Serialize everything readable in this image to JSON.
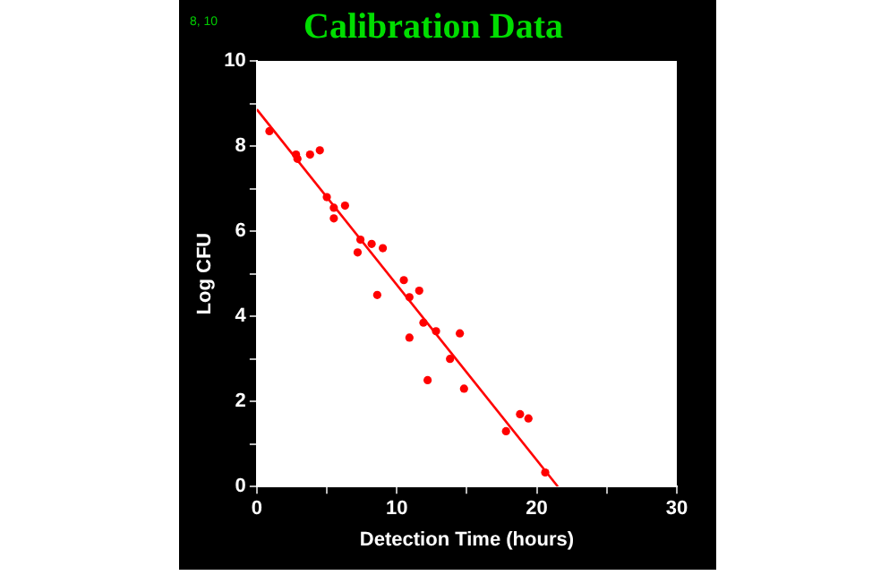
{
  "chart_data": {
    "type": "scatter",
    "title": "Calibration Data",
    "xlabel": "Detection Time (hours)",
    "ylabel": "Log CFU",
    "annotations": [
      "8, 10"
    ],
    "xlim": [
      0,
      30
    ],
    "ylim": [
      0,
      10
    ],
    "xticks": [
      0,
      {
        "value": 5,
        "label": null
      },
      10,
      {
        "value": 15,
        "label": null
      },
      20,
      {
        "value": 25,
        "label": null
      },
      30
    ],
    "yticks": [
      0,
      {
        "value": 1,
        "label": null
      },
      2,
      {
        "value": 3,
        "label": null
      },
      4,
      {
        "value": 5,
        "label": null
      },
      6,
      {
        "value": 7,
        "label": null
      },
      8,
      {
        "value": 9,
        "label": null
      },
      10
    ],
    "grid": false,
    "legend": false,
    "series": [
      {
        "marker": "circle",
        "color": "#ff0000",
        "x": [
          0.9,
          2.8,
          2.9,
          3.8,
          4.5,
          5.0,
          5.5,
          5.5,
          6.3,
          7.4,
          7.2,
          8.2,
          9.0,
          8.6,
          10.5,
          10.9,
          11.6,
          11.9,
          10.9,
          12.8,
          14.5,
          13.8,
          12.2,
          14.8,
          17.8,
          18.8,
          19.4,
          20.6
        ],
        "values": [
          8.35,
          7.8,
          7.7,
          7.8,
          7.9,
          6.8,
          6.55,
          6.3,
          6.6,
          5.8,
          5.5,
          5.7,
          5.6,
          4.5,
          4.85,
          4.45,
          4.6,
          3.85,
          3.5,
          3.65,
          3.6,
          3.0,
          2.5,
          2.3,
          1.3,
          1.7,
          1.6,
          0.33
        ]
      },
      {
        "type": "line",
        "color": "#ff0000",
        "x": [
          0,
          21.5
        ],
        "values": [
          8.86,
          0
        ]
      }
    ]
  }
}
